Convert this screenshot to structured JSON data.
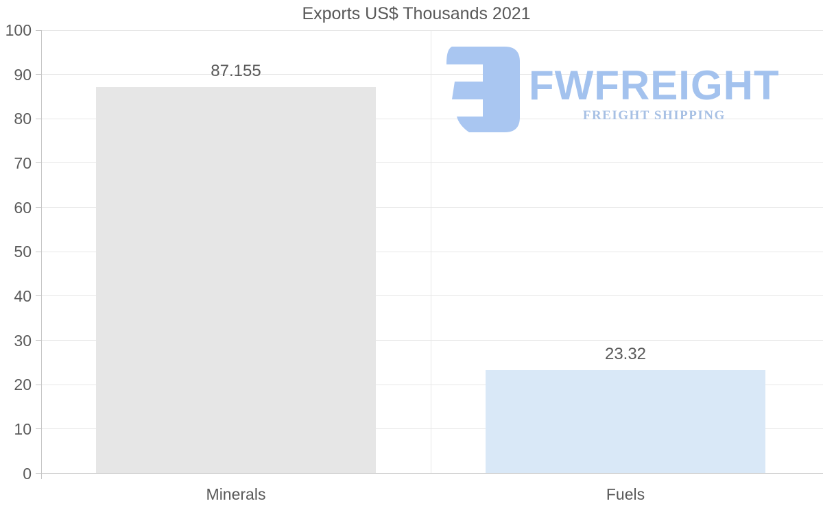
{
  "chart_data": {
    "type": "bar",
    "title": "Exports US$ Thousands 2021",
    "categories": [
      "Minerals",
      "Fuels"
    ],
    "values": [
      87.155,
      23.32
    ],
    "value_labels": [
      "87.155",
      "23.32"
    ],
    "ylim": [
      0,
      100
    ],
    "yticks": [
      0,
      10,
      20,
      30,
      40,
      50,
      60,
      70,
      80,
      90,
      100
    ],
    "grid": true,
    "legend": false,
    "bar_colors": [
      "#e6e6e6",
      "#d9e8f7"
    ],
    "label_color": "#595959",
    "gridline_color": "#e7e7e7",
    "axis_color": "#c6c6c6"
  },
  "watermark": {
    "brand": "FWFREIGHT",
    "tagline": "FREIGHT SHIPPING",
    "brand_color": "#a3c2ee",
    "tagline_color": "#a7c0e4",
    "icon_color": "#a9c6f1"
  }
}
